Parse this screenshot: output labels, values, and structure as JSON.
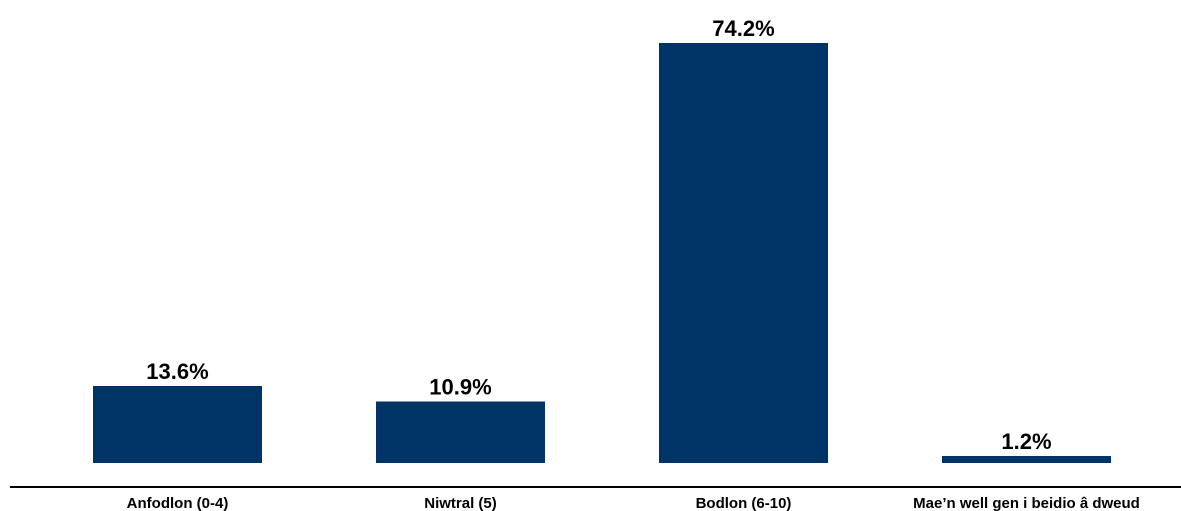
{
  "colors": {
    "bar": "#003366",
    "axis": "#000000",
    "text": "#000000"
  },
  "chart_data": {
    "type": "bar",
    "title": "",
    "xlabel": "",
    "ylabel": "",
    "ylim": [
      0,
      74.2
    ],
    "grid": false,
    "legend": "none",
    "categories": [
      "Anfodlon (0-4)",
      "Niwtral (5)",
      "Bodlon (6-10)",
      "Mae’n well gen i beidio â dweud"
    ],
    "values": [
      13.6,
      10.9,
      74.2,
      1.2
    ],
    "value_labels": [
      "13.6%",
      "10.9%",
      "74.2%",
      "1.2%"
    ]
  }
}
